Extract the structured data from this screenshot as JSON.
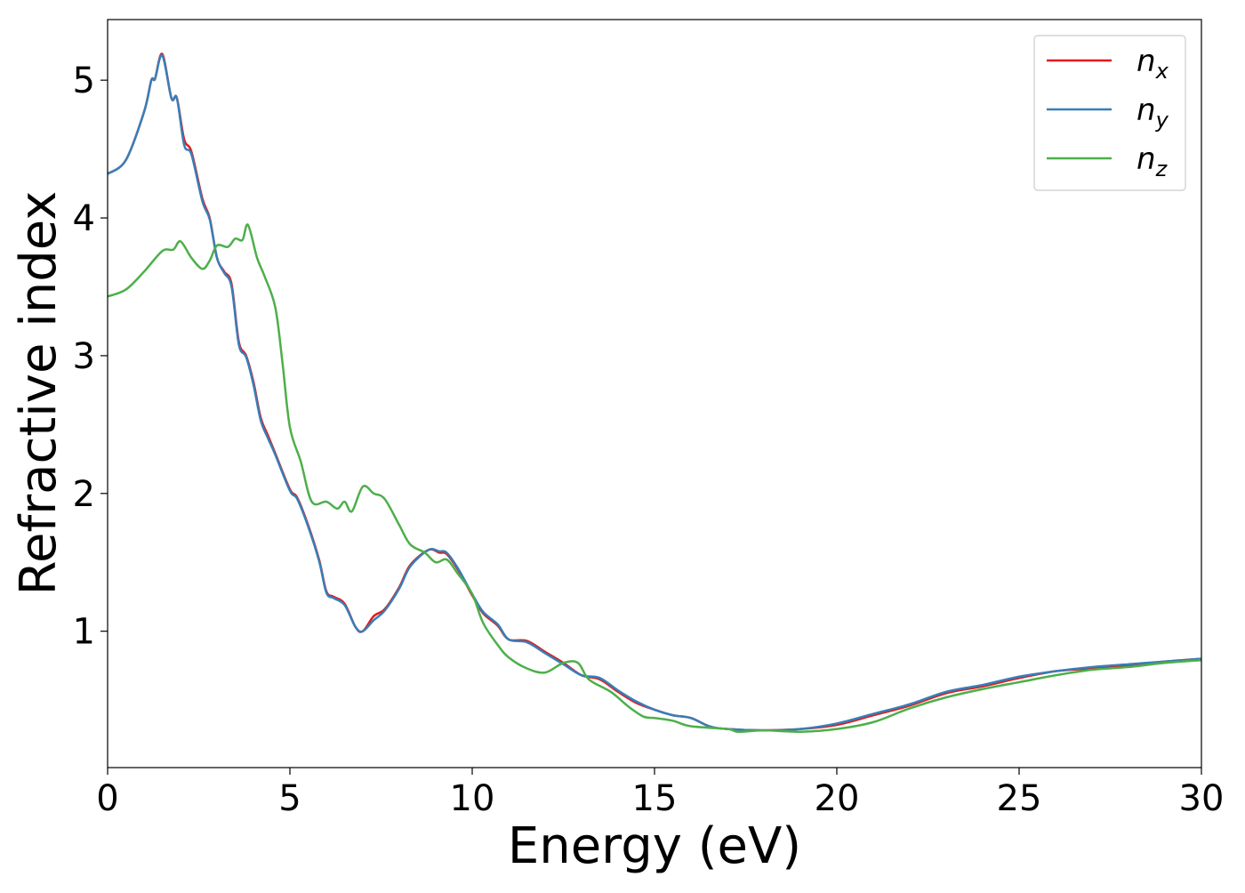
{
  "chart_data": {
    "type": "line",
    "title": "",
    "xlabel": "Energy (eV)",
    "ylabel": "Refractive index",
    "xlim": [
      0,
      30
    ],
    "ylim": [
      0.01,
      5.44
    ],
    "xticks": [
      0,
      5,
      10,
      15,
      20,
      25,
      30
    ],
    "yticks": [
      1,
      2,
      3,
      4,
      5
    ],
    "grid": false,
    "legend_position": "top-right",
    "series": [
      {
        "name": "n",
        "sub": "x",
        "color": "#e41a1c",
        "x": [
          0,
          0.5,
          1.0,
          1.2,
          1.3,
          1.5,
          1.75,
          1.9,
          2.1,
          2.3,
          2.6,
          2.8,
          3.0,
          3.2,
          3.4,
          3.6,
          3.8,
          4.0,
          4.2,
          4.4,
          4.6,
          5.0,
          5.2,
          5.5,
          5.8,
          6.0,
          6.2,
          6.5,
          6.8,
          7.0,
          7.3,
          7.6,
          8.0,
          8.3,
          8.8,
          9.1,
          9.3,
          9.6,
          10.0,
          10.3,
          10.7,
          11.0,
          11.5,
          12.0,
          12.5,
          13.0,
          13.5,
          14.0,
          14.5,
          15.0,
          15.5,
          16.0,
          16.5,
          17.0,
          18.0,
          19.0,
          20.0,
          21.0,
          22.0,
          23.0,
          24.0,
          25.0,
          26.0,
          27.0,
          28.0,
          29.0,
          30.0
        ],
        "y": [
          4.32,
          4.42,
          4.77,
          5.0,
          5.01,
          5.19,
          4.87,
          4.87,
          4.57,
          4.48,
          4.14,
          4.0,
          3.71,
          3.61,
          3.52,
          3.1,
          3.0,
          2.81,
          2.55,
          2.42,
          2.29,
          2.03,
          1.97,
          1.77,
          1.52,
          1.29,
          1.25,
          1.2,
          1.03,
          1.0,
          1.11,
          1.16,
          1.32,
          1.48,
          1.59,
          1.57,
          1.56,
          1.45,
          1.26,
          1.13,
          1.04,
          0.94,
          0.93,
          0.85,
          0.77,
          0.68,
          0.65,
          0.56,
          0.48,
          0.43,
          0.39,
          0.37,
          0.31,
          0.29,
          0.28,
          0.29,
          0.32,
          0.39,
          0.46,
          0.55,
          0.6,
          0.66,
          0.71,
          0.73,
          0.75,
          0.78,
          0.8
        ]
      },
      {
        "name": "n",
        "sub": "y",
        "color": "#377eb8",
        "x": [
          0,
          0.5,
          1.0,
          1.2,
          1.3,
          1.5,
          1.75,
          1.9,
          2.1,
          2.3,
          2.6,
          2.8,
          3.0,
          3.2,
          3.4,
          3.6,
          3.8,
          4.0,
          4.2,
          4.4,
          4.6,
          5.0,
          5.2,
          5.5,
          5.8,
          6.0,
          6.2,
          6.5,
          6.8,
          7.0,
          7.3,
          7.6,
          8.0,
          8.3,
          8.8,
          9.1,
          9.3,
          9.6,
          10.0,
          10.3,
          10.7,
          11.0,
          11.5,
          12.0,
          12.5,
          13.0,
          13.5,
          14.0,
          14.5,
          15.0,
          15.5,
          16.0,
          16.5,
          17.0,
          18.0,
          19.0,
          20.0,
          21.0,
          22.0,
          23.0,
          24.0,
          25.0,
          26.0,
          27.0,
          28.0,
          29.0,
          30.0
        ],
        "y": [
          4.32,
          4.42,
          4.77,
          5.0,
          5.01,
          5.18,
          4.87,
          4.87,
          4.53,
          4.46,
          4.12,
          3.99,
          3.71,
          3.6,
          3.5,
          3.08,
          2.99,
          2.79,
          2.53,
          2.4,
          2.28,
          2.02,
          1.96,
          1.76,
          1.51,
          1.28,
          1.24,
          1.19,
          1.03,
          1.0,
          1.08,
          1.15,
          1.31,
          1.47,
          1.59,
          1.58,
          1.57,
          1.46,
          1.27,
          1.14,
          1.05,
          0.94,
          0.92,
          0.84,
          0.76,
          0.68,
          0.66,
          0.57,
          0.49,
          0.43,
          0.39,
          0.37,
          0.31,
          0.29,
          0.28,
          0.29,
          0.33,
          0.4,
          0.47,
          0.56,
          0.61,
          0.67,
          0.71,
          0.74,
          0.76,
          0.78,
          0.8
        ]
      },
      {
        "name": "n",
        "sub": "z",
        "color": "#4daf4a",
        "x": [
          0,
          0.5,
          1.0,
          1.5,
          1.8,
          2.0,
          2.3,
          2.6,
          2.8,
          3.0,
          3.3,
          3.5,
          3.7,
          3.85,
          4.1,
          4.3,
          4.6,
          4.8,
          5.0,
          5.3,
          5.6,
          6.0,
          6.3,
          6.5,
          6.7,
          7.0,
          7.3,
          7.6,
          8.0,
          8.3,
          8.7,
          9.0,
          9.3,
          9.6,
          10.0,
          10.3,
          10.7,
          11.0,
          11.5,
          12.0,
          12.5,
          12.9,
          13.2,
          13.8,
          14.3,
          14.7,
          15.0,
          15.5,
          16.0,
          17.0,
          17.3,
          18.0,
          19.0,
          20.0,
          21.0,
          22.0,
          23.0,
          24.0,
          25.0,
          26.0,
          27.0,
          28.0,
          29.0,
          30.0
        ],
        "y": [
          3.43,
          3.48,
          3.61,
          3.76,
          3.77,
          3.83,
          3.71,
          3.63,
          3.69,
          3.8,
          3.79,
          3.85,
          3.84,
          3.95,
          3.71,
          3.58,
          3.35,
          2.94,
          2.48,
          2.23,
          1.94,
          1.94,
          1.89,
          1.94,
          1.87,
          2.05,
          2.0,
          1.96,
          1.77,
          1.63,
          1.57,
          1.5,
          1.52,
          1.42,
          1.27,
          1.06,
          0.9,
          0.81,
          0.73,
          0.7,
          0.77,
          0.77,
          0.65,
          0.56,
          0.45,
          0.38,
          0.37,
          0.35,
          0.31,
          0.29,
          0.27,
          0.28,
          0.27,
          0.29,
          0.34,
          0.44,
          0.52,
          0.58,
          0.63,
          0.68,
          0.72,
          0.74,
          0.77,
          0.79
        ]
      }
    ]
  }
}
